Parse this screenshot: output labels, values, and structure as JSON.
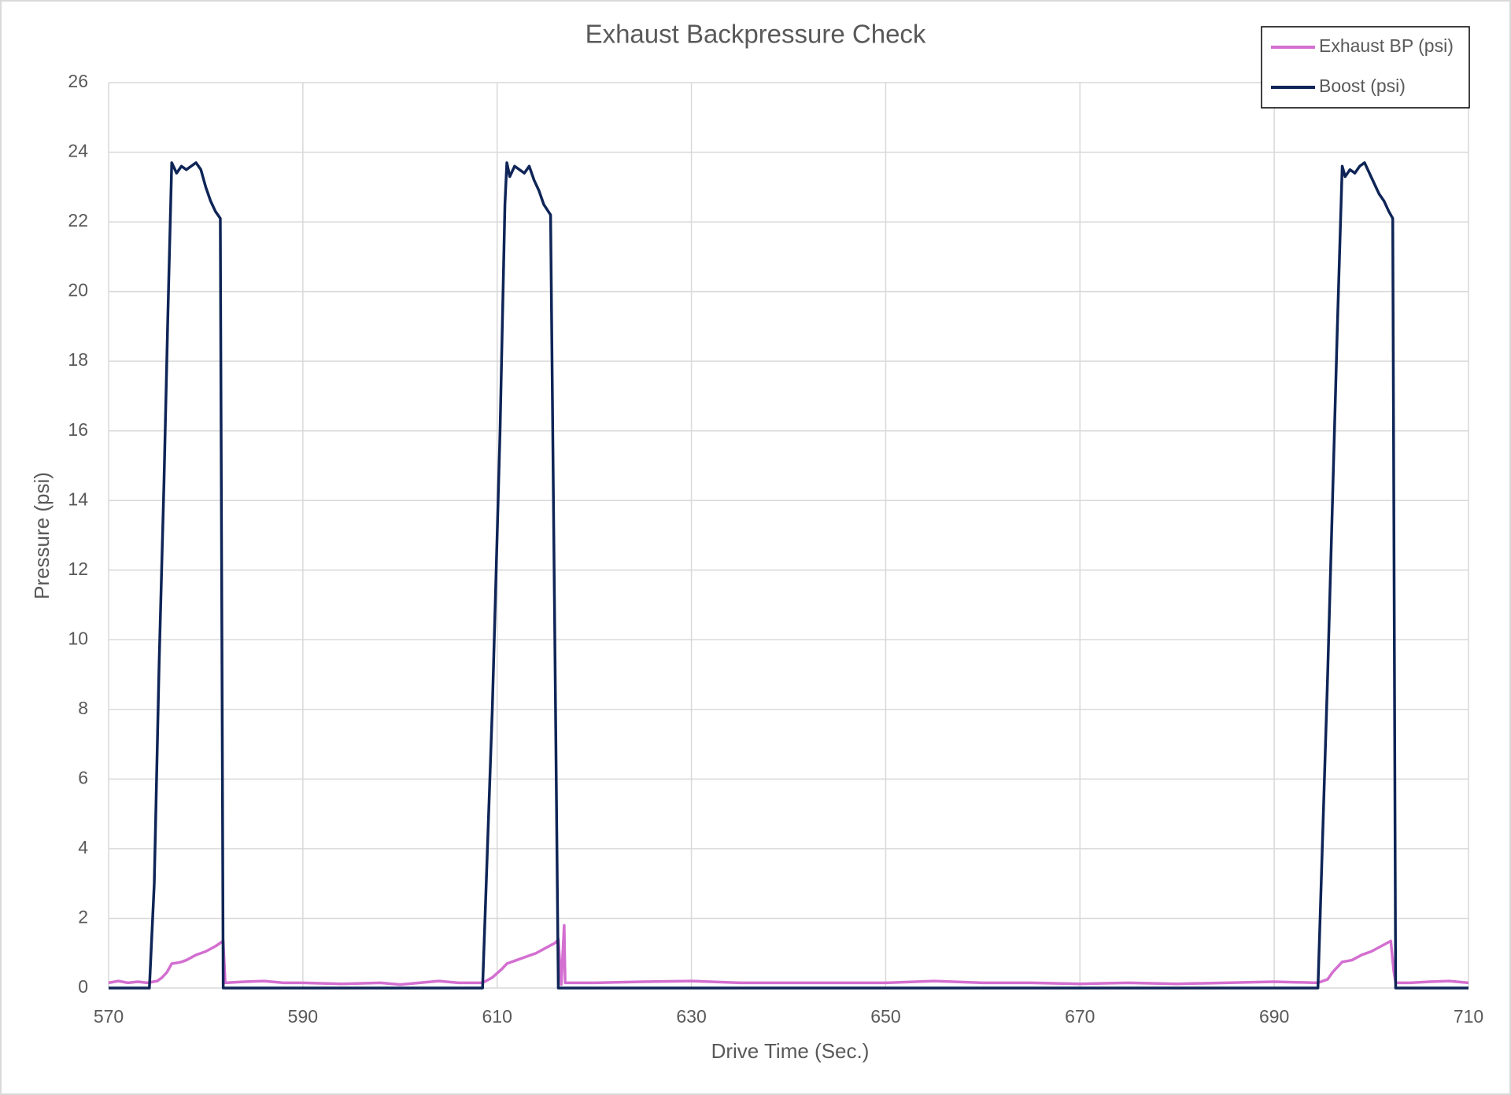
{
  "chart_data": {
    "type": "line",
    "title": "Exhaust Backpressure Check",
    "x_label": "Drive Time (Sec.)",
    "y_label": "Pressure (psi)",
    "xlim": [
      570,
      710
    ],
    "xticks": [
      570,
      590,
      610,
      630,
      650,
      670,
      690,
      710
    ],
    "ylim": [
      0,
      26
    ],
    "yticks": [
      0,
      2,
      4,
      6,
      8,
      10,
      12,
      14,
      16,
      18,
      20,
      22,
      24,
      26
    ],
    "grid": true,
    "legend": "top-right",
    "series": [
      {
        "name": "Exhaust BP (psi)",
        "color": "#d36fd0",
        "x": [
          570,
          571,
          572,
          573,
          574,
          575,
          575.5,
          576,
          576.5,
          577,
          577.5,
          578,
          579,
          580,
          581,
          581.8,
          582,
          584,
          586,
          588,
          590,
          594,
          598,
          600,
          602,
          604,
          606,
          608.5,
          609.5,
          610.5,
          611,
          612,
          613,
          614,
          615,
          616,
          616.3,
          616.6,
          616.9,
          617,
          620,
          625,
          630,
          635,
          640,
          645,
          650,
          655,
          660,
          665,
          670,
          675,
          680,
          685,
          690,
          694.5,
          695.5,
          696,
          697,
          698,
          699,
          700,
          701,
          702,
          702.3,
          702.5,
          704,
          706,
          708,
          710
        ],
        "values": [
          0.15,
          0.2,
          0.15,
          0.18,
          0.15,
          0.2,
          0.3,
          0.45,
          0.7,
          0.72,
          0.75,
          0.8,
          0.95,
          1.05,
          1.2,
          1.35,
          0.15,
          0.18,
          0.2,
          0.15,
          0.15,
          0.12,
          0.15,
          0.1,
          0.15,
          0.2,
          0.15,
          0.15,
          0.3,
          0.55,
          0.7,
          0.8,
          0.9,
          1.0,
          1.15,
          1.3,
          1.4,
          0.1,
          1.8,
          0.15,
          0.15,
          0.18,
          0.2,
          0.15,
          0.15,
          0.15,
          0.15,
          0.2,
          0.15,
          0.15,
          0.12,
          0.15,
          0.12,
          0.15,
          0.18,
          0.15,
          0.25,
          0.45,
          0.75,
          0.8,
          0.95,
          1.05,
          1.2,
          1.35,
          0.5,
          0.15,
          0.15,
          0.18,
          0.2,
          0.15
        ]
      },
      {
        "name": "Boost (psi)",
        "color": "#0f2557",
        "x": [
          570,
          574.2,
          574.7,
          575.2,
          575.7,
          576.1,
          576.5,
          577,
          577.5,
          578,
          578.5,
          579,
          579.5,
          580,
          580.5,
          581,
          581.5,
          581.8,
          608.5,
          609.5,
          610.3,
          610.8,
          611,
          611.3,
          611.8,
          612.3,
          612.8,
          613.3,
          613.8,
          614.3,
          614.8,
          615.5,
          616.3,
          694.5,
          695.5,
          696.5,
          697,
          697.3,
          697.8,
          698.3,
          698.8,
          699.3,
          699.8,
          700.3,
          700.8,
          701.3,
          701.8,
          702.2,
          702.5,
          710
        ],
        "values": [
          0,
          0,
          3,
          9.3,
          14.5,
          19.3,
          23.7,
          23.4,
          23.6,
          23.5,
          23.6,
          23.7,
          23.5,
          23.0,
          22.6,
          22.3,
          22.1,
          0,
          0,
          8,
          16,
          22.5,
          23.7,
          23.3,
          23.6,
          23.5,
          23.4,
          23.6,
          23.2,
          22.9,
          22.5,
          22.2,
          0,
          0,
          9,
          19,
          23.6,
          23.3,
          23.5,
          23.4,
          23.6,
          23.7,
          23.4,
          23.1,
          22.8,
          22.6,
          22.3,
          22.1,
          0,
          0
        ]
      }
    ]
  }
}
